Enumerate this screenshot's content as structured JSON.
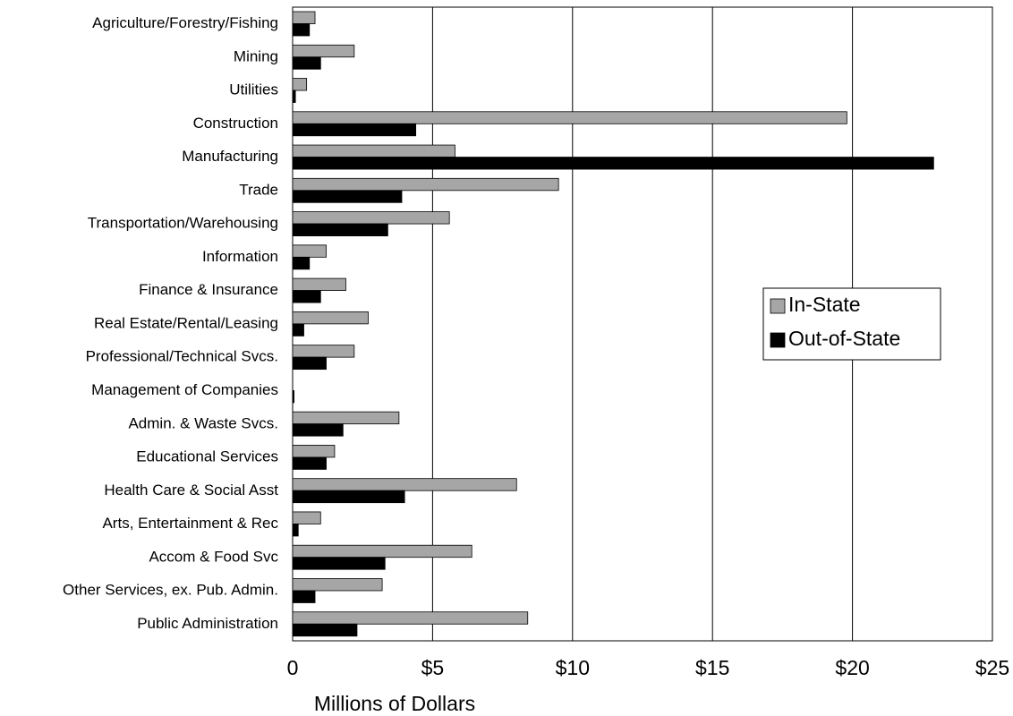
{
  "chart_data": {
    "type": "bar",
    "orientation": "horizontal",
    "x_label": "Millions of Dollars",
    "categories": [
      "Agriculture/Forestry/Fishing",
      "Mining",
      "Utilities",
      "Construction",
      "Manufacturing",
      "Trade",
      "Transportation/Warehousing",
      "Information",
      "Finance & Insurance",
      "Real Estate/Rental/Leasing",
      "Professional/Technical Svcs.",
      "Management of Companies",
      "Admin. & Waste Svcs.",
      "Educational Services",
      "Health Care & Social Asst",
      "Arts, Entertainment & Rec",
      "Accom & Food Svc",
      "Other Services, ex. Pub. Admin.",
      "Public Administration"
    ],
    "series": [
      {
        "name": "In-State",
        "color": "#a6a6a6",
        "values": [
          0.8,
          2.2,
          0.5,
          19.8,
          5.8,
          9.5,
          5.6,
          1.2,
          1.9,
          2.7,
          2.2,
          0,
          3.8,
          1.5,
          8.0,
          1.0,
          6.4,
          3.2,
          8.4
        ]
      },
      {
        "name": "Out-of-State",
        "color": "#000000",
        "values": [
          0.6,
          1.0,
          0.1,
          4.4,
          22.9,
          3.9,
          3.4,
          0.6,
          1.0,
          0.4,
          1.2,
          0.05,
          1.8,
          1.2,
          4.0,
          0.2,
          3.3,
          0.8,
          2.3
        ]
      }
    ],
    "xlim": [
      0,
      25
    ],
    "xticks": [
      0,
      {
        "value": 5,
        "label": "$5"
      },
      {
        "value": 10,
        "label": "$10"
      },
      {
        "value": 15,
        "label": "$15"
      },
      {
        "value": 20,
        "label": "$20"
      },
      {
        "value": 25,
        "label": "$25"
      }
    ],
    "grid": true,
    "legend": "right"
  }
}
